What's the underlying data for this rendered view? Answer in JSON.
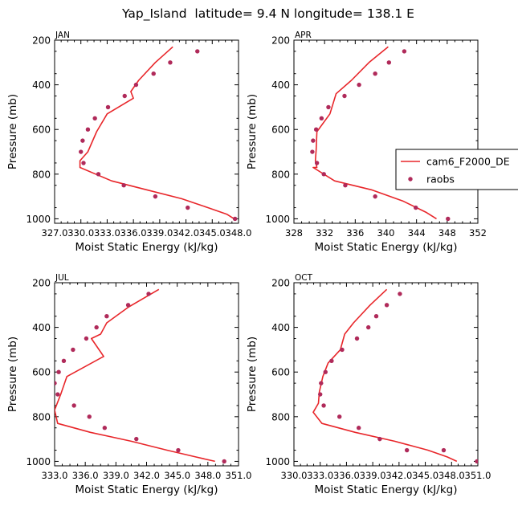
{
  "figure": {
    "title": "Yap_Island  latitude= 9.4 N longitude= 138.1 E",
    "legend": {
      "model": "cam6_F2000_DE",
      "obs": "raobs"
    },
    "colors": {
      "model": "#e8262a",
      "obs": "#b02a5a",
      "axis": "#000000"
    }
  },
  "chart_data": [
    {
      "type": "line",
      "title": "JAN",
      "xlabel": "Moist Static Energy (kJ/kg)",
      "ylabel": "Pressure (mb)",
      "xlim": [
        327,
        348
      ],
      "xticks": [
        327.0,
        330.0,
        333.0,
        336.0,
        339.0,
        342.0,
        345.0,
        348.0
      ],
      "xticklabels": [
        "327.0",
        "330.0",
        "333.0",
        "336.0",
        "339.0",
        "342.0",
        "345.0",
        "348.0"
      ],
      "ylim": [
        1020,
        200
      ],
      "yticks": [
        200,
        400,
        600,
        800,
        1000
      ],
      "yticklabels": [
        "200",
        "400",
        "600",
        "800",
        "1000"
      ],
      "series": [
        {
          "name": "cam6_F2000_DE",
          "kind": "line",
          "x": [
            340.5,
            338.5,
            336.6,
            335.7,
            336.0,
            333.0,
            331.8,
            330.8,
            329.9,
            329.9,
            333.5,
            337.5,
            341.5,
            344.5,
            346.7,
            347.5
          ],
          "y": [
            230,
            300,
            380,
            430,
            460,
            530,
            610,
            700,
            740,
            770,
            830,
            870,
            910,
            950,
            980,
            1000
          ]
        },
        {
          "name": "raobs",
          "kind": "scatter",
          "x": [
            343.3,
            340.2,
            338.3,
            336.3,
            335.0,
            333.1,
            331.6,
            330.8,
            330.2,
            330.0,
            330.3,
            332.0,
            334.9,
            338.5,
            342.2,
            347.6
          ],
          "y": [
            250,
            300,
            350,
            400,
            450,
            500,
            550,
            600,
            650,
            700,
            750,
            800,
            850,
            900,
            950,
            1000
          ]
        }
      ]
    },
    {
      "type": "line",
      "title": "APR",
      "xlabel": "Moist Static Energy (kJ/kg)",
      "ylabel": "Pressure (mb)",
      "xlim": [
        328,
        352
      ],
      "xticks": [
        328,
        332,
        336,
        340,
        344,
        348,
        352
      ],
      "xticklabels": [
        "328",
        "332",
        "336",
        "340",
        "344",
        "348",
        "352"
      ],
      "ylim": [
        1020,
        200
      ],
      "yticks": [
        200,
        400,
        600,
        800,
        1000
      ],
      "yticklabels": [
        "200",
        "400",
        "600",
        "800",
        "1000"
      ],
      "series": [
        {
          "name": "cam6_F2000_DE",
          "kind": "line",
          "x": [
            340.3,
            337.8,
            335.5,
            333.5,
            332.7,
            331.0,
            330.9,
            330.8,
            331.0,
            330.5,
            333.3,
            338.1,
            342.2,
            345.2,
            346.6
          ],
          "y": [
            230,
            300,
            380,
            440,
            530,
            610,
            690,
            740,
            770,
            770,
            830,
            870,
            920,
            970,
            1000
          ]
        },
        {
          "name": "raobs",
          "kind": "scatter",
          "x": [
            342.4,
            340.4,
            338.6,
            336.5,
            334.6,
            332.5,
            331.6,
            330.9,
            330.5,
            330.4,
            331.0,
            331.9,
            334.7,
            338.6,
            343.9,
            348.1
          ],
          "y": [
            250,
            300,
            350,
            400,
            450,
            500,
            550,
            600,
            650,
            700,
            750,
            800,
            850,
            900,
            950,
            1000
          ]
        }
      ]
    },
    {
      "type": "line",
      "title": "JUL",
      "xlabel": "Moist Static Energy (kJ/kg)",
      "ylabel": "Pressure (mb)",
      "xlim": [
        333,
        351
      ],
      "xticks": [
        333,
        336,
        339,
        342,
        345,
        348,
        351
      ],
      "xticklabels": [
        "333.0",
        "336.0",
        "339.0",
        "342.0",
        "345.0",
        "348.0",
        "351.0"
      ],
      "ylim": [
        1020,
        200
      ],
      "yticks": [
        200,
        400,
        600,
        800,
        1000
      ],
      "yticklabels": [
        "200",
        "400",
        "600",
        "800",
        "1000"
      ],
      "series": [
        {
          "name": "cam6_F2000_DE",
          "kind": "line",
          "x": [
            343.2,
            340.2,
            338.1,
            337.5,
            336.6,
            337.8,
            334.2,
            333.6,
            333.0,
            333.3,
            336.5,
            340.5,
            344.0,
            346.8,
            348.7
          ],
          "y": [
            230,
            310,
            380,
            430,
            450,
            530,
            620,
            700,
            770,
            830,
            870,
            910,
            950,
            980,
            1000
          ]
        },
        {
          "name": "raobs",
          "kind": "scatter",
          "x": [
            342.2,
            340.2,
            338.1,
            337.1,
            336.1,
            334.8,
            333.9,
            333.4,
            333.0,
            333.3,
            334.9,
            336.4,
            337.9,
            341.0,
            345.1,
            349.6
          ],
          "y": [
            250,
            300,
            350,
            400,
            450,
            500,
            550,
            600,
            650,
            700,
            750,
            800,
            850,
            900,
            950,
            1000
          ]
        }
      ]
    },
    {
      "type": "line",
      "title": "OCT",
      "xlabel": "Moist Static Energy (kJ/kg)",
      "ylabel": "Pressure (mb)",
      "xlim": [
        330,
        351
      ],
      "xticks": [
        330,
        333,
        336,
        339,
        342,
        345,
        348,
        351
      ],
      "xticklabels": [
        "330.0",
        "333.0",
        "336.0",
        "339.0",
        "342.0",
        "345.0",
        "348.0",
        "351.0"
      ],
      "ylim": [
        1020,
        200
      ],
      "yticks": [
        200,
        400,
        600,
        800,
        1000
      ],
      "yticklabels": [
        "200",
        "400",
        "600",
        "800",
        "1000"
      ],
      "series": [
        {
          "name": "cam6_F2000_DE",
          "kind": "line",
          "x": [
            340.6,
            338.7,
            336.8,
            335.8,
            335.3,
            333.9,
            333.3,
            332.9,
            332.8,
            332.2,
            333.2,
            337.0,
            341.5,
            345.3,
            347.5,
            348.6
          ],
          "y": [
            230,
            300,
            380,
            430,
            500,
            560,
            620,
            690,
            740,
            780,
            830,
            870,
            910,
            950,
            980,
            1000
          ]
        },
        {
          "name": "raobs",
          "kind": "scatter",
          "x": [
            342.1,
            340.6,
            339.4,
            338.5,
            337.2,
            335.5,
            334.3,
            333.6,
            333.1,
            333.0,
            333.4,
            335.2,
            337.4,
            339.8,
            342.9,
            347.1,
            350.9
          ],
          "y": [
            250,
            300,
            350,
            400,
            450,
            500,
            550,
            600,
            650,
            700,
            750,
            800,
            850,
            900,
            950,
            950,
            1000
          ]
        }
      ]
    }
  ]
}
